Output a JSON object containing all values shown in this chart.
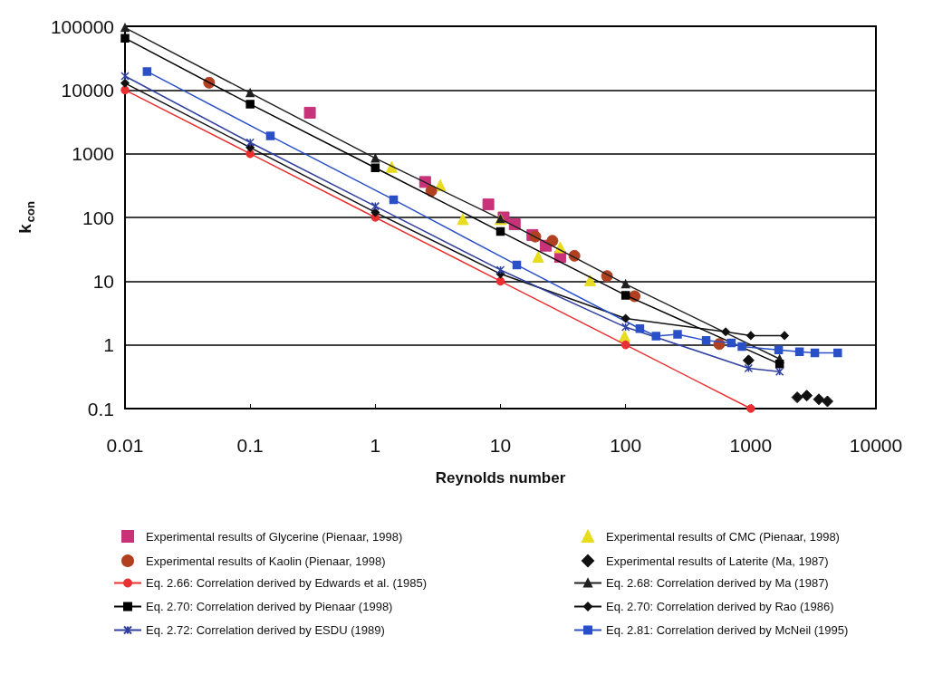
{
  "chart_data": {
    "type": "line",
    "xlabel": "Reynolds number",
    "ylabel": "k$_{con}$",
    "log": "xy",
    "grid": "y",
    "legend": "bottom",
    "xlim": [
      0.01,
      10000
    ],
    "xticks": [
      0.01,
      0.1,
      1,
      10,
      100,
      1000,
      10000
    ],
    "ylim": [
      0.1,
      100000
    ],
    "yticks": [
      0.1,
      1,
      10,
      100,
      1000,
      10000,
      100000
    ],
    "series": [
      {
        "name": "Experimental results of Glycerine (Pienaar, 1998)",
        "type": "scatter",
        "marker": "square",
        "color": "#c83278",
        "x": [
          0.3,
          2.5,
          8,
          10.6,
          13,
          18,
          23,
          30
        ],
        "values": [
          4400,
          360,
          160,
          100,
          78,
          53,
          36,
          24
        ]
      },
      {
        "name": "Experimental results of CMC (Pienaar, 1998)",
        "type": "scatter",
        "marker": "triangle",
        "color": "#e8dc20",
        "x": [
          1.35,
          3.3,
          5,
          10,
          20,
          30,
          52,
          98
        ],
        "values": [
          620,
          320,
          94,
          94,
          24,
          34,
          10.3,
          1.37
        ]
      },
      {
        "name": "Experimental results of Kaolin (Pienaar, 1998)",
        "type": "scatter",
        "marker": "circle",
        "color": "#b04020",
        "x": [
          0.047,
          2.8,
          19,
          26,
          39,
          71,
          118,
          560
        ],
        "values": [
          13000,
          260,
          50,
          43,
          25,
          12,
          5.8,
          1.03
        ]
      },
      {
        "name": "Experimental results of Laterite (Ma, 1987)",
        "type": "scatter",
        "marker": "diamond",
        "color": "#101010",
        "x": [
          960,
          2350,
          2800,
          3500,
          4100
        ],
        "values": [
          0.57,
          0.15,
          0.16,
          0.14,
          0.13
        ]
      },
      {
        "name": "Eq. 2.66: Correlation derived by Edwards et al. (1985)",
        "marker": "circle",
        "color": "#e83030",
        "x": [
          0.01,
          0.1,
          1,
          10,
          100,
          1000
        ],
        "values": [
          10000,
          1000,
          100,
          10,
          1,
          0.1
        ]
      },
      {
        "name": "Eq. 2.68: Correlation derived by Ma (1987)",
        "marker": "triangle",
        "color": "#202020",
        "x": [
          0.01,
          0.1,
          1,
          10,
          100,
          1700
        ],
        "values": [
          95000,
          9000,
          850,
          95,
          9,
          0.6
        ]
      },
      {
        "name": "Eq. 2.70: Correlation derived by Pienaar (1998)",
        "marker": "square",
        "color": "#000000",
        "x": [
          0.01,
          0.1,
          1,
          10,
          100,
          1700
        ],
        "values": [
          65000,
          6000,
          600,
          60,
          6,
          0.5
        ]
      },
      {
        "name": "Eq. 2.70: Correlation derived by Rao (1986)",
        "marker": "diamond",
        "color": "#101010",
        "x": [
          0.01,
          0.1,
          1,
          10,
          100,
          630,
          1000,
          1860
        ],
        "values": [
          12800,
          1250,
          120,
          13,
          2.6,
          1.6,
          1.4,
          1.4
        ]
      },
      {
        "name": "Eq. 2.72: Correlation derived by ESDU (1989)",
        "marker": "cross",
        "color": "#3040a0",
        "x": [
          0.01,
          0.1,
          1,
          10,
          100,
          960,
          1700
        ],
        "values": [
          16500,
          1500,
          150,
          15,
          1.9,
          0.43,
          0.38
        ]
      },
      {
        "name": "Eq. 2.81: Correlation derived by McNeil (1995)",
        "marker": "square",
        "color": "#2a50c8",
        "x": [
          0.015,
          0.145,
          1.4,
          13.5,
          130,
          175,
          260,
          440,
          700,
          850,
          1670,
          2450,
          3250,
          4950
        ],
        "values": [
          19500,
          1900,
          190,
          18,
          1.8,
          1.37,
          1.46,
          1.17,
          1.07,
          0.94,
          0.83,
          0.78,
          0.75,
          0.75
        ]
      }
    ]
  }
}
